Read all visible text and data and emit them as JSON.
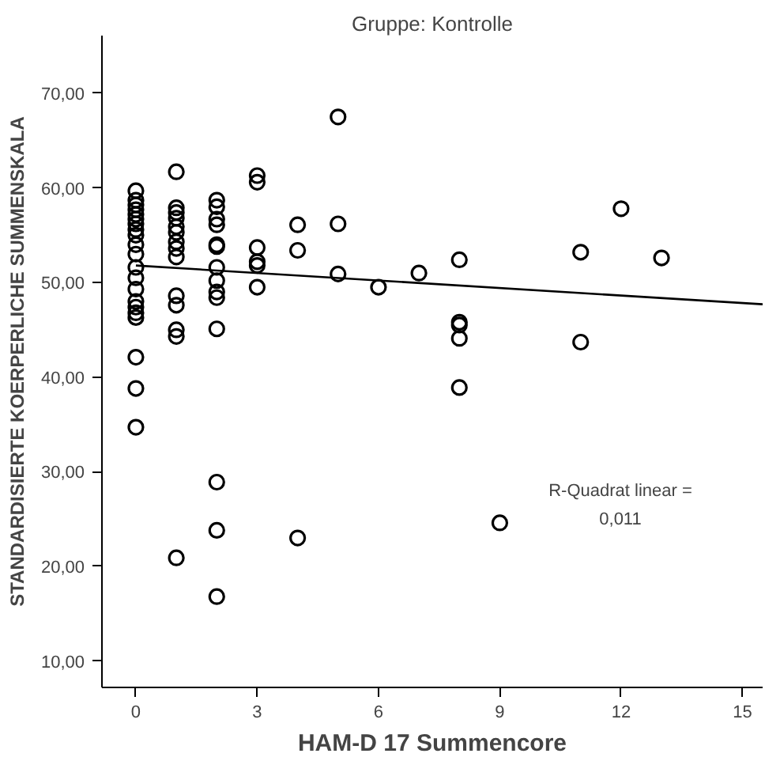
{
  "chart_data": {
    "type": "scatter",
    "title": "Gruppe: Kontrolle",
    "xlabel": "HAM-D 17 Summencore",
    "ylabel": "STANDARDISIERTE KOERPERLICHE SUMMENSKALA",
    "annotations": [
      "R-Quadrat linear = 0,011"
    ],
    "grid": false,
    "xlim": [
      -0.84,
      15.5
    ],
    "ylim": [
      7.2,
      76.1
    ],
    "xticks": [
      0,
      3,
      6,
      9,
      12,
      15
    ],
    "yticks": [
      {
        "value": 10,
        "label": "10,00"
      },
      {
        "value": 20,
        "label": "20,00"
      },
      {
        "value": 30,
        "label": "30,00"
      },
      {
        "value": 40,
        "label": "40,00"
      },
      {
        "value": 50,
        "label": "50,00"
      },
      {
        "value": 60,
        "label": "60,00"
      },
      {
        "value": 70,
        "label": "70,00"
      }
    ],
    "series": [
      {
        "color": "#000000",
        "marker": "circle",
        "x": [
          0,
          0,
          0,
          0,
          0,
          0,
          0,
          0,
          0,
          0,
          0,
          0,
          0,
          0,
          0,
          0,
          0,
          0,
          0,
          0,
          0,
          1,
          1,
          1,
          1,
          1,
          1,
          1,
          1,
          1,
          1,
          1,
          1,
          1,
          1,
          2,
          2,
          2,
          2,
          2,
          2,
          2,
          2,
          2,
          2,
          2,
          2,
          2,
          2,
          3,
          3,
          3,
          3,
          3,
          3,
          4,
          4,
          4,
          5,
          5,
          5,
          6,
          7,
          8,
          8,
          8,
          8,
          8,
          9,
          11,
          11,
          12,
          13
        ],
        "values": [
          59.7,
          58.7,
          58.2,
          57.7,
          57.2,
          56.7,
          56.2,
          55.6,
          55.0,
          54.0,
          53.0,
          51.6,
          50.5,
          49.3,
          48.0,
          47.4,
          46.8,
          46.3,
          42.1,
          38.8,
          34.7,
          61.7,
          57.9,
          57.4,
          56.8,
          55.9,
          55.3,
          54.3,
          53.6,
          52.7,
          48.6,
          47.6,
          45.0,
          44.3,
          20.9,
          58.7,
          58.0,
          56.7,
          56.1,
          54.0,
          53.8,
          51.6,
          50.2,
          49.0,
          48.4,
          45.1,
          28.9,
          23.8,
          16.8,
          61.3,
          60.6,
          53.7,
          52.2,
          51.8,
          49.5,
          56.1,
          53.4,
          23.0,
          67.5,
          56.2,
          50.9,
          49.5,
          51.0,
          52.4,
          45.8,
          45.5,
          44.1,
          38.9,
          24.6,
          53.2,
          43.7,
          57.8,
          52.6
        ]
      },
      {
        "type": "line",
        "color": "#000000",
        "x": [
          0,
          15.5
        ],
        "values": [
          51.8,
          47.7
        ],
        "line_style": "solid"
      }
    ]
  }
}
